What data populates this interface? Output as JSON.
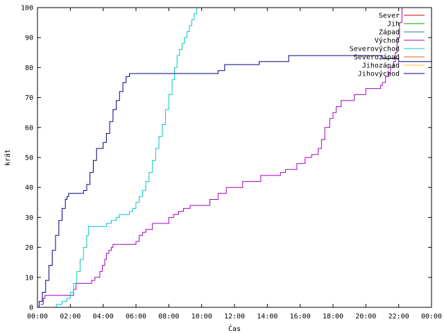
{
  "chart_data": {
    "type": "line",
    "title": "",
    "xlabel": "Čas",
    "ylabel": "krát",
    "xlim": [
      0,
      24
    ],
    "ylim": [
      0,
      100
    ],
    "x_ticks": [
      "00:00",
      "02:00",
      "04:00",
      "06:00",
      "08:00",
      "10:00",
      "12:00",
      "14:00",
      "16:00",
      "18:00",
      "20:00",
      "22:00",
      "00:00"
    ],
    "y_ticks": [
      0,
      10,
      20,
      30,
      40,
      50,
      60,
      70,
      80,
      90,
      100
    ],
    "grid": false,
    "legend_position": "top-right",
    "series": [
      {
        "name": "Sever",
        "color": "#cc0000",
        "x": [],
        "y": []
      },
      {
        "name": "Jih",
        "color": "#00a000",
        "x": [],
        "y": []
      },
      {
        "name": "Západ",
        "color": "#1a78b4",
        "x": [],
        "y": []
      },
      {
        "name": "Východ",
        "color": "#a000c0",
        "x": [
          0.2,
          0.35,
          0.45,
          2.0,
          2.2,
          2.35,
          3.1,
          3.3,
          3.5,
          3.8,
          3.95,
          4.1,
          4.2,
          4.35,
          4.5,
          4.6,
          4.7,
          4.85,
          5.1,
          5.4,
          5.8,
          6.0,
          6.2,
          6.4,
          6.6,
          7.0,
          7.3,
          8.0,
          8.3,
          8.6,
          8.9,
          9.3,
          9.8,
          10.5,
          11.0,
          11.5,
          11.8,
          12.5,
          13.0,
          13.6,
          14.0,
          14.5,
          14.8,
          15.1,
          15.5,
          15.8,
          16.3,
          16.7,
          16.9,
          17.1,
          17.3,
          17.5,
          17.8,
          18.0,
          18.2,
          18.5,
          19.3,
          19.6,
          20.0,
          20.5,
          20.9,
          21.0,
          21.2,
          21.4,
          21.5,
          21.7,
          21.8,
          21.9,
          22.05,
          22.2
        ],
        "y": [
          1,
          3,
          4,
          4,
          6,
          8,
          8,
          9,
          10,
          12,
          14,
          16,
          18,
          19,
          20,
          21,
          21,
          21,
          21,
          21,
          21,
          22,
          24,
          25,
          26,
          28,
          28,
          30,
          31,
          32,
          33,
          34,
          34,
          36,
          38,
          40,
          40,
          42,
          42,
          44,
          44,
          44,
          45,
          46,
          46,
          48,
          50,
          51,
          51,
          53,
          56,
          60,
          63,
          65,
          67,
          69,
          71,
          71,
          73,
          73,
          74,
          75,
          77,
          78,
          80,
          82,
          85,
          90,
          95,
          100
        ]
      },
      {
        "name": "Severovýchod",
        "color": "#00c8c8",
        "x": [
          1.0,
          1.15,
          1.5,
          1.8,
          2.0,
          2.2,
          2.4,
          2.6,
          2.8,
          3.0,
          3.1,
          3.4,
          3.7,
          4.0,
          4.2,
          4.5,
          4.8,
          5.0,
          5.3,
          5.6,
          5.8,
          6.0,
          6.2,
          6.4,
          6.6,
          6.8,
          7.0,
          7.2,
          7.4,
          7.6,
          7.8,
          8.0,
          8.2,
          8.35,
          8.5,
          8.65,
          8.8,
          8.95,
          9.1,
          9.25,
          9.4,
          9.55,
          9.7
        ],
        "y": [
          0,
          1,
          2,
          3,
          5,
          8,
          12,
          16,
          20,
          24,
          27,
          27,
          27,
          27,
          28,
          29,
          30,
          31,
          31,
          32,
          33,
          35,
          37,
          39,
          42,
          45,
          49,
          53,
          57,
          61,
          66,
          71,
          76,
          80,
          84,
          86,
          88,
          90,
          92,
          94,
          96,
          98,
          100
        ]
      },
      {
        "name": "Severozápad",
        "color": "#d2691e",
        "x": [],
        "y": []
      },
      {
        "name": "Jihozápad",
        "color": "#ffc020",
        "x": [],
        "y": []
      },
      {
        "name": "Jihovýchod",
        "color": "#000080",
        "x": [
          0.0,
          0.1,
          0.3,
          0.5,
          0.7,
          0.9,
          1.1,
          1.3,
          1.5,
          1.7,
          1.8,
          1.9,
          2.0,
          2.2,
          2.5,
          2.8,
          3.0,
          3.2,
          3.4,
          3.6,
          3.8,
          4.0,
          4.2,
          4.4,
          4.6,
          4.8,
          5.0,
          5.2,
          5.4,
          5.6,
          5.8,
          6.0,
          7.0,
          8.0,
          9.0,
          10.0,
          10.5,
          11.0,
          11.4,
          12.0,
          13.0,
          13.5,
          14.0,
          15.0,
          15.3,
          16.0,
          17.0,
          18.0,
          19.0,
          20.0,
          21.0,
          22.0,
          23.0,
          24.0
        ],
        "y": [
          0,
          2,
          5,
          9,
          14,
          19,
          24,
          29,
          33,
          36,
          37,
          38,
          38,
          38,
          38,
          39,
          41,
          45,
          49,
          53,
          53,
          55,
          58,
          62,
          66,
          69,
          72,
          75,
          77,
          78,
          78,
          78,
          78,
          78,
          78,
          78,
          78,
          79,
          81,
          81,
          81,
          82,
          82,
          82,
          84,
          84,
          84,
          84,
          84,
          84,
          83,
          82,
          82,
          82
        ]
      }
    ]
  }
}
